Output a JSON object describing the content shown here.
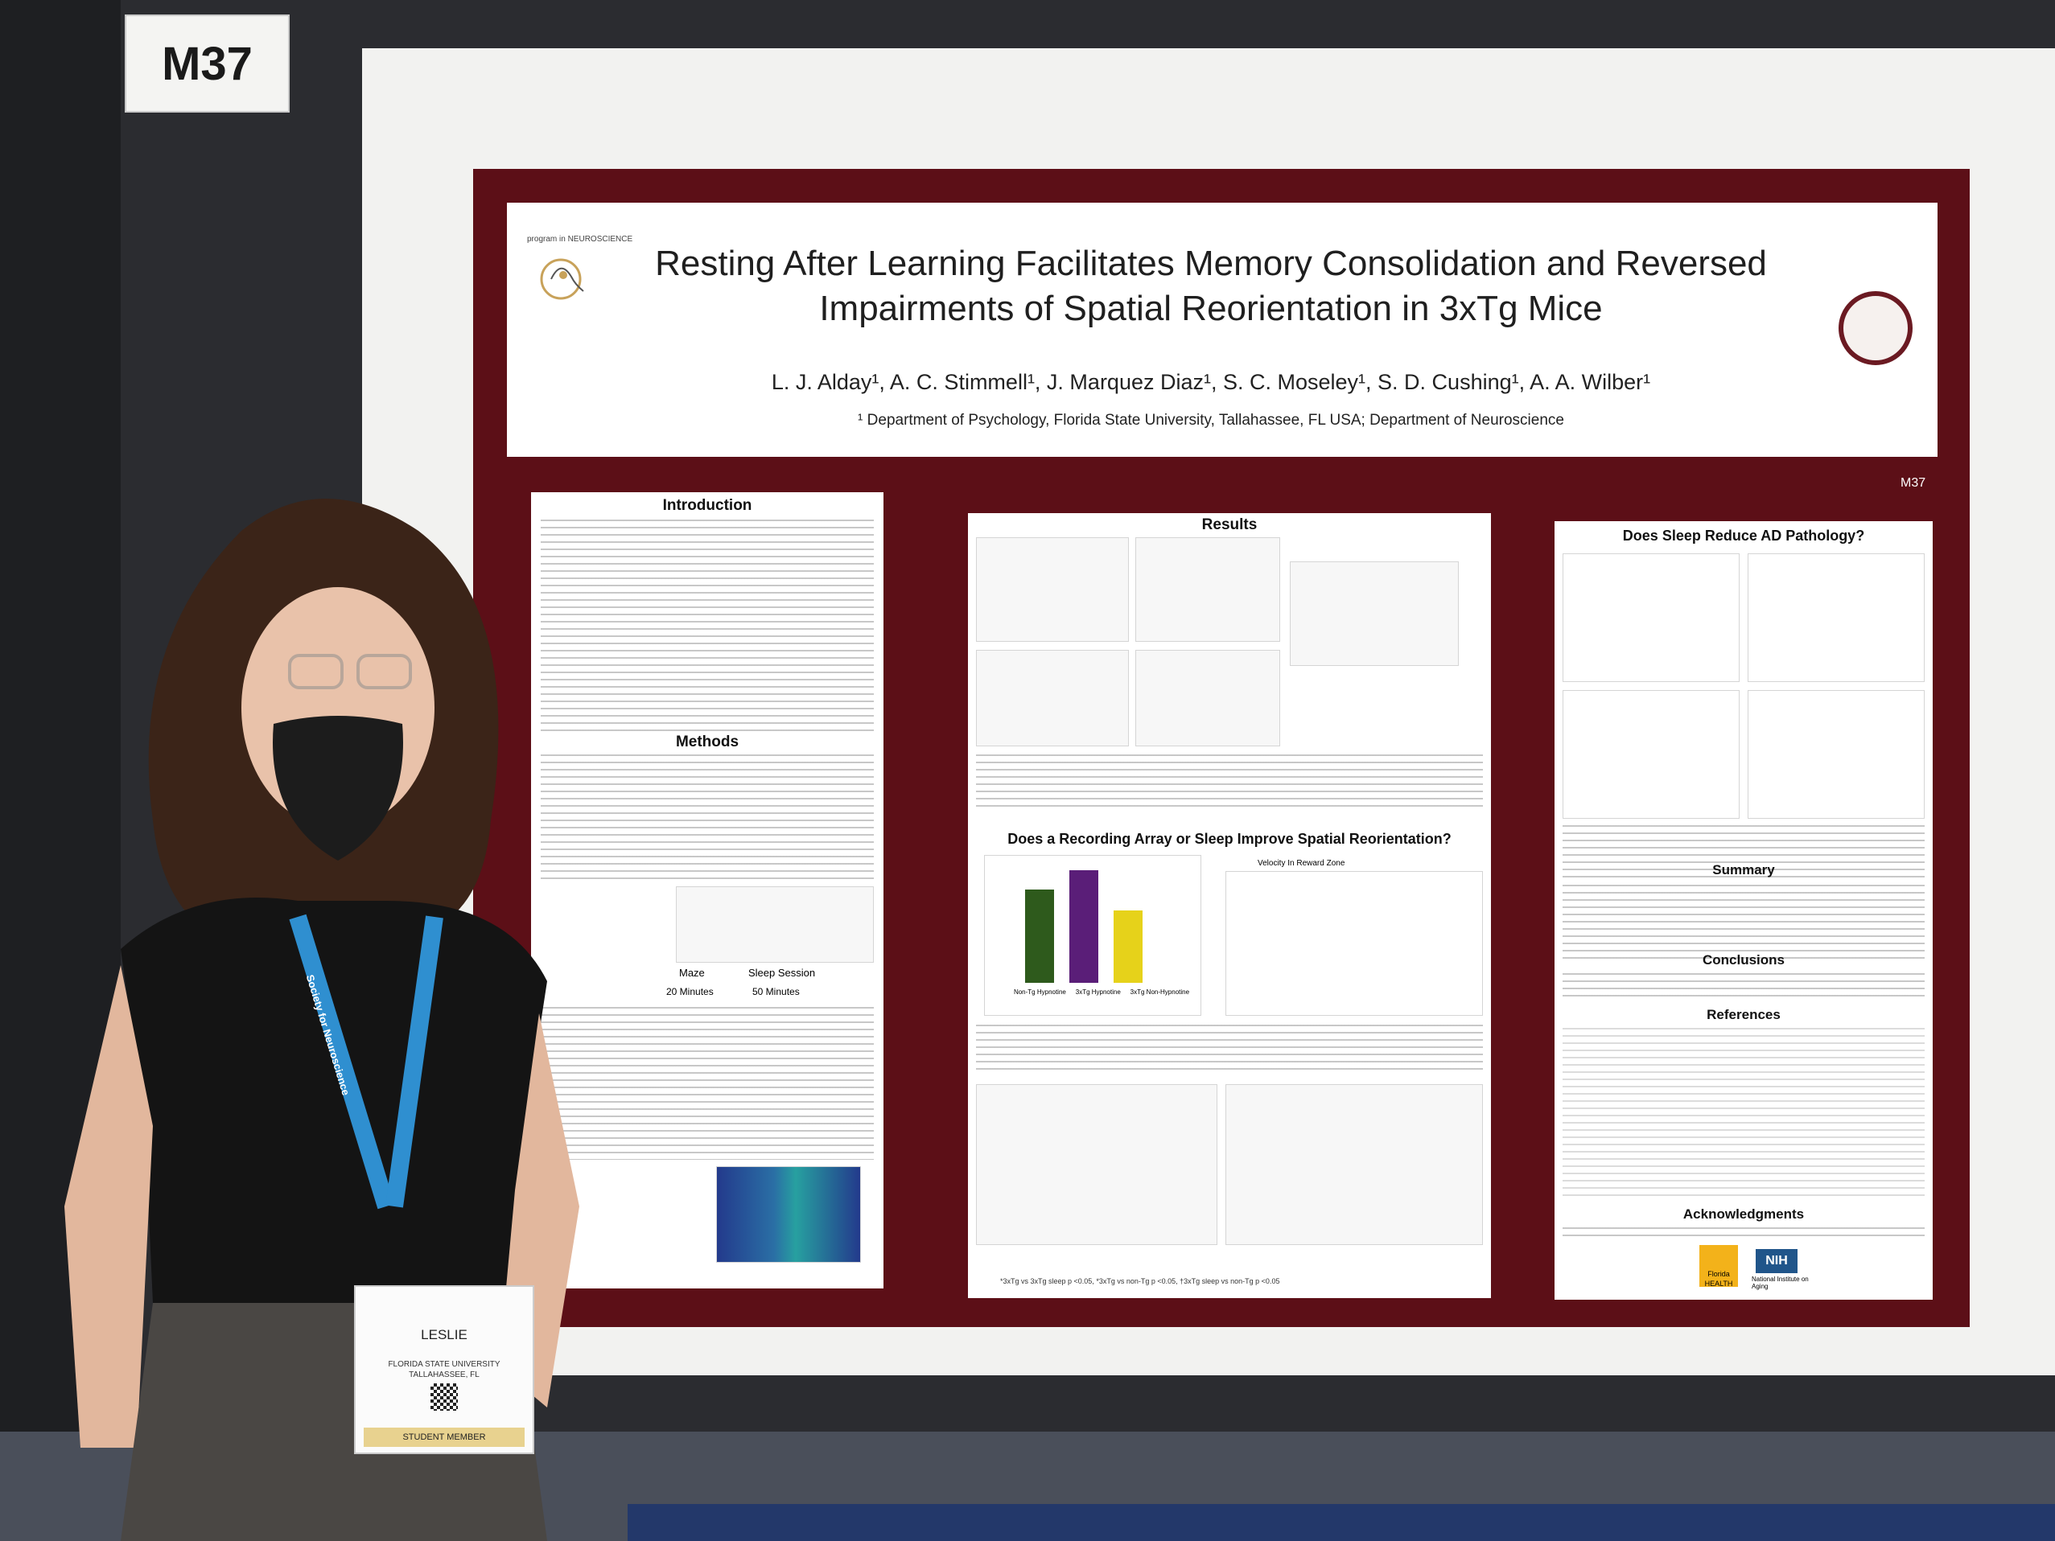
{
  "booth": {
    "code": "M37"
  },
  "poster": {
    "program_label": "program in NEUROSCIENCE",
    "title_line1": "Resting After Learning Facilitates Memory Consolidation and Reversed",
    "title_line2": "Impairments of Spatial Reorientation in 3xTg Mice",
    "authors": "L. J. Alday¹, A. C. Stimmell¹, J. Marquez Diaz¹, S. C. Moseley¹, S. D. Cushing¹, A. A. Wilber¹",
    "affiliation": "¹ Department of Psychology, Florida State University, Tallahassee, FL USA; Department of Neuroscience",
    "corner_code": "M37",
    "left_panel": {
      "introduction_heading": "Introduction",
      "methods_heading": "Methods",
      "maze_label": "Maze",
      "sleep_session_label": "Sleep Session",
      "maze_duration": "20 Minutes",
      "sleep_duration": "50 Minutes"
    },
    "middle_panel": {
      "results_heading": "Results",
      "recording_heading": "Does a Recording Array or Sleep Improve Spatial Reorientation?",
      "velocity_label": "Velocity In Reward Zone",
      "bar_categories": [
        "Non-Tg Hypnotine",
        "3xTg Hypnotine",
        "3xTg Non-Hypnotine"
      ],
      "footnote": "*3xTg vs 3xTg sleep p <0.05, *3xTg vs non-Tg p <0.05, †3xTg sleep vs non-Tg p <0.05"
    },
    "right_panel": {
      "pathology_heading": "Does Sleep Reduce AD Pathology?",
      "summary_heading": "Summary",
      "conclusions_heading": "Conclusions",
      "references_heading": "References",
      "acknowledgments_heading": "Acknowledgments",
      "logo_health": "Florida HEALTH",
      "logo_nih": "NIH",
      "nih_caption": "National Institute on Aging"
    }
  },
  "badge": {
    "name": "LESLIE",
    "school_line1": "FLORIDA STATE UNIVERSITY",
    "school_line2": "TALLAHASSEE, FL",
    "member_type": "STUDENT MEMBER",
    "lanyard_text": "Society for Neuroscience"
  },
  "colors": {
    "poster_border": "#5c0f17",
    "bar_green": "#2e5a1c",
    "bar_purple": "#5a1e78",
    "bar_yellow": "#e6d21a",
    "lanyard": "#2f8fd0"
  }
}
